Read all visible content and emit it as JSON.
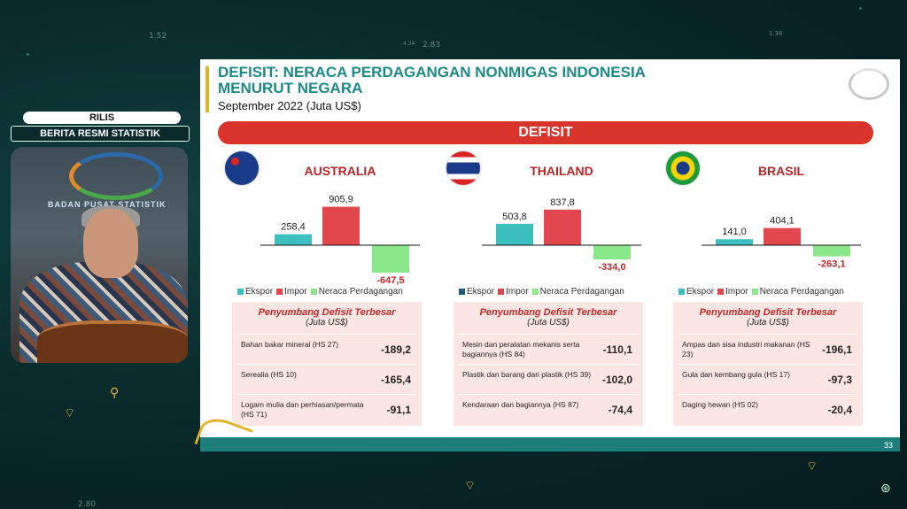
{
  "background": {
    "numbers": [
      "1.52",
      "4.34",
      "2.83",
      "1.36",
      "2.80"
    ]
  },
  "presenter": {
    "badge": "RILIS",
    "program": "BERITA RESMI STATISTIK",
    "video_caption": "BADAN PUSAT STATISTIK"
  },
  "slide": {
    "title_line1": "DEFISIT: NERACA PERDAGANGAN NONMIGAS INDONESIA",
    "title_line2": "MENURUT NEGARA",
    "subtitle": "September 2022 (Juta US$)",
    "banner": "DEFISIT",
    "page_number": "33",
    "colors": {
      "ekspor": "#3dbfbf",
      "impor": "#e2474d",
      "neraca": "#8ae88a",
      "banner": "#d9342b",
      "title": "#1c8a86"
    },
    "legend": {
      "ekspor": "Ekspor",
      "impor": "Impor",
      "neraca": "Neraca Perdagangan"
    },
    "table_header": "Penyumbang Defisit Terbesar",
    "table_unit": "(Juta US$)",
    "countries": [
      {
        "name": "AUSTRALIA",
        "flag_icon": "australia-flag-icon",
        "ekspor": "258,4",
        "impor": "905,9",
        "neraca": "-647,5",
        "rows": [
          {
            "label": "Bahan bakar mineral (HS 27)",
            "value": "-189,2"
          },
          {
            "label": "Serealia (HS 10)",
            "value": "-165,4"
          },
          {
            "label": "Logam mulia dan perhiasan/permata (HS 71)",
            "value": "-91,1"
          }
        ]
      },
      {
        "name": "THAILAND",
        "flag_icon": "thailand-flag-icon",
        "ekspor": "503,8",
        "impor": "837,8",
        "neraca": "-334,0",
        "rows": [
          {
            "label": "Mesin dan peralatan mekanis serta bagiannya  (HS 84)",
            "value": "-110,1"
          },
          {
            "label": "Plastik dan barang dari plastik (HS 39)",
            "value": "-102,0"
          },
          {
            "label": "Kendaraan dan bagiannya (HS 87)",
            "value": "-74,4"
          }
        ]
      },
      {
        "name": "BRASIL",
        "flag_icon": "brazil-flag-icon",
        "ekspor": "141,0",
        "impor": "404,1",
        "neraca": "-263,1",
        "rows": [
          {
            "label": "Ampas dan sisa industri makanan (HS 23)",
            "value": "-196,1"
          },
          {
            "label": "Gula dan kembang gula (HS 17)",
            "value": "-97,3"
          },
          {
            "label": "Daging hewan (HS 02)",
            "value": "-20,4"
          }
        ]
      }
    ]
  },
  "chart_data": [
    {
      "type": "bar",
      "title": "AUSTRALIA",
      "categories": [
        "Ekspor",
        "Impor",
        "Neraca Perdagangan"
      ],
      "values": [
        258.4,
        905.9,
        -647.5
      ]
    },
    {
      "type": "bar",
      "title": "THAILAND",
      "categories": [
        "Ekspor",
        "Impor",
        "Neraca Perdagangan"
      ],
      "values": [
        503.8,
        837.8,
        -334.0
      ]
    },
    {
      "type": "bar",
      "title": "BRASIL",
      "categories": [
        "Ekspor",
        "Impor",
        "Neraca Perdagangan"
      ],
      "values": [
        141.0,
        404.1,
        -263.1
      ]
    }
  ]
}
